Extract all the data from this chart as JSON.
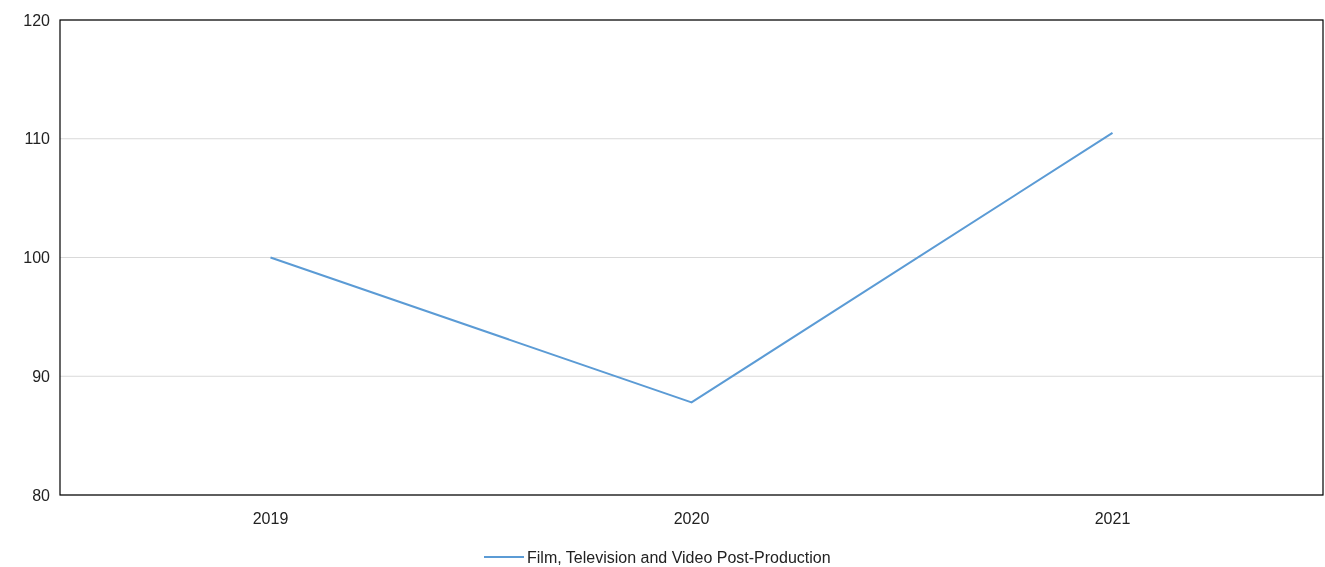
{
  "chart_data": {
    "type": "line",
    "categories": [
      "2019",
      "2020",
      "2021"
    ],
    "series": [
      {
        "name": "Film, Television and Video Post-Production",
        "color": "#5b9bd5",
        "values": [
          100,
          87.8,
          110.5
        ]
      }
    ],
    "ylim": [
      80,
      120
    ],
    "yticks": [
      80,
      90,
      100,
      110,
      120
    ],
    "grid": "y",
    "legend": "bottom",
    "marker": "none"
  }
}
